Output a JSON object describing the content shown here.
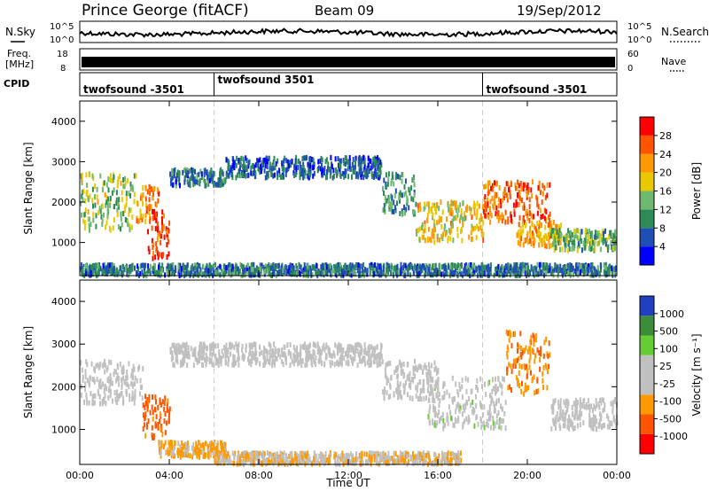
{
  "header": {
    "station": "Prince George (fitACF)",
    "beam": "Beam 09",
    "date": "19/Sep/2012"
  },
  "top_panels": {
    "nsky_label": "N.Sky",
    "nsearch_label": "N.Search",
    "freq_label_line1": "Freq.",
    "freq_label_line2": "[MHz]",
    "nave_label": "Nave",
    "cpid_label": "CPID",
    "noise_ticks_left": [
      "10^5",
      "10^0"
    ],
    "noise_ticks_right": [
      "10^5",
      "10^0"
    ],
    "freq_ticks": [
      "18",
      "8"
    ],
    "nave_ticks": [
      "60",
      "0"
    ]
  },
  "cpid_segments": [
    {
      "label": "twofsound -3501",
      "start_hour": 0
    },
    {
      "label": "twofsound 3501",
      "start_hour": 6
    },
    {
      "label": "twofsound -3501",
      "start_hour": 18
    }
  ],
  "colors": {
    "power_scale": [
      "#0000ff",
      "#1f4fb4",
      "#2e8b57",
      "#6fb86f",
      "#e8c800",
      "#ff9900",
      "#ff5500",
      "#ff0000"
    ],
    "velocity_scale": [
      "#ff0000",
      "#ff5500",
      "#ff9900",
      "#c0c0c0",
      "#c0c0c0",
      "#66cc33",
      "#3b8c3b",
      "#2040c0"
    ]
  },
  "chart_data": [
    {
      "type": "heatmap",
      "title": "Power",
      "ylabel": "Slant Range [km]",
      "xlabel": "Time UT",
      "xlim": [
        0,
        24
      ],
      "ylim": [
        180,
        4500
      ],
      "y_ticks": [
        "4000",
        "3000",
        "2000",
        "1000"
      ],
      "x_ticks": [
        "00:00",
        "04:00",
        "08:00",
        "12:00",
        "16:00",
        "20:00",
        "00:00"
      ],
      "colorbar_label": "Power [dB]",
      "colorbar_ticks": [
        "28",
        "24",
        "20",
        "16",
        "12",
        "8",
        "4"
      ],
      "colorbar_range": [
        0,
        30
      ],
      "scatter_bands": [
        {
          "t0": 0.0,
          "t1": 2.5,
          "r0": 1300,
          "r1": 2700,
          "value": 14
        },
        {
          "t0": 2.5,
          "t1": 3.5,
          "r0": 1500,
          "r1": 2400,
          "value": 22
        },
        {
          "t0": 3.0,
          "t1": 4.0,
          "r0": 600,
          "r1": 1800,
          "value": 26
        },
        {
          "t0": 4.0,
          "t1": 6.5,
          "r0": 2400,
          "r1": 2800,
          "value": 8
        },
        {
          "t0": 6.5,
          "t1": 13.5,
          "r0": 2600,
          "r1": 3100,
          "value": 6
        },
        {
          "t0": 13.5,
          "t1": 15.0,
          "r0": 1700,
          "r1": 2700,
          "value": 10
        },
        {
          "t0": 15.0,
          "t1": 18.0,
          "r0": 1000,
          "r1": 2000,
          "value": 18
        },
        {
          "t0": 18.0,
          "t1": 21.0,
          "r0": 1500,
          "r1": 2500,
          "value": 24
        },
        {
          "t0": 19.5,
          "t1": 21.5,
          "r0": 900,
          "r1": 1500,
          "value": 20
        },
        {
          "t0": 21.0,
          "t1": 24.0,
          "r0": 800,
          "r1": 1300,
          "value": 12
        },
        {
          "t0": 0.0,
          "t1": 24.0,
          "r0": 180,
          "r1": 450,
          "value": 8
        }
      ]
    },
    {
      "type": "heatmap",
      "title": "Velocity",
      "ylabel": "Slant Range [km]",
      "xlabel": "Time UT",
      "xlim": [
        0,
        24
      ],
      "ylim": [
        180,
        4500
      ],
      "y_ticks": [
        "4000",
        "3000",
        "2000",
        "1000"
      ],
      "x_ticks": [
        "00:00",
        "04:00",
        "08:00",
        "12:00",
        "16:00",
        "20:00",
        "00:00"
      ],
      "colorbar_label": "Velocity [m s^-1]",
      "colorbar_ticks": [
        "1000",
        "500",
        "100",
        "25",
        "-25",
        "-100",
        "-500",
        "-1000"
      ],
      "colorbar_range": [
        -1000,
        1000
      ],
      "scatter_bands": [
        {
          "t0": 0.0,
          "t1": 2.8,
          "r0": 1600,
          "r1": 2600,
          "value": 0
        },
        {
          "t0": 2.8,
          "t1": 4.0,
          "r0": 800,
          "r1": 1800,
          "value": -600
        },
        {
          "t0": 3.5,
          "t1": 6.5,
          "r0": 350,
          "r1": 700,
          "value": -300
        },
        {
          "t0": 4.0,
          "t1": 13.5,
          "r0": 2500,
          "r1": 3000,
          "value": 0
        },
        {
          "t0": 13.5,
          "t1": 16.0,
          "r0": 1700,
          "r1": 2600,
          "value": 0
        },
        {
          "t0": 15.5,
          "t1": 19.0,
          "r0": 1000,
          "r1": 2200,
          "value": 120
        },
        {
          "t0": 19.0,
          "t1": 21.0,
          "r0": 1800,
          "r1": 3300,
          "value": -450
        },
        {
          "t0": 21.0,
          "t1": 24.0,
          "r0": 1000,
          "r1": 1700,
          "value": 0
        },
        {
          "t0": 6.0,
          "t1": 17.0,
          "r0": 180,
          "r1": 450,
          "value": -200
        }
      ]
    }
  ]
}
